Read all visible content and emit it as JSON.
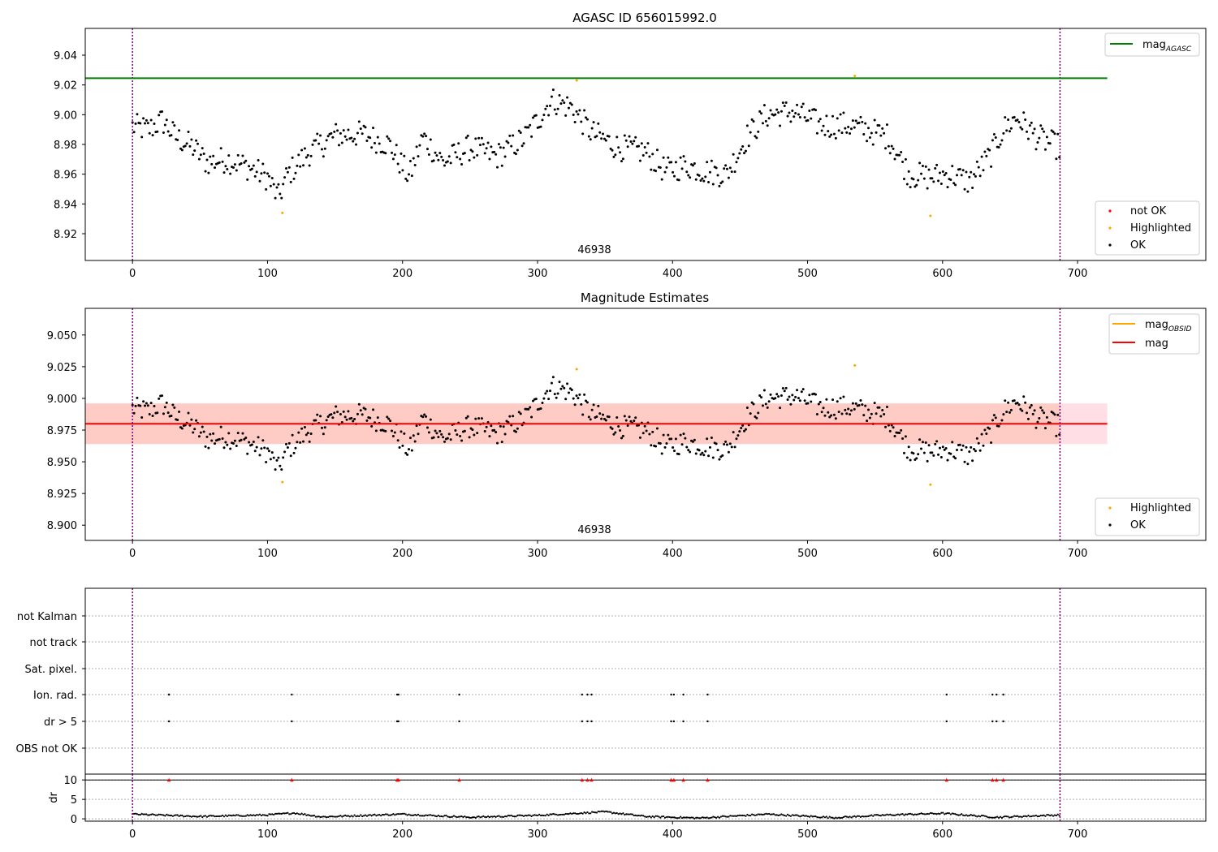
{
  "figure": {
    "title": "AGASC ID 656015992.0",
    "subtitle": "Magnitude Estimates",
    "obsid_label": "46938"
  },
  "colors": {
    "ok": "#000000",
    "not_ok": "#ff0000",
    "highlighted": "#ffa500",
    "mag_agasc": "#008000",
    "mag_obsid": "#ffa500",
    "mag": "#ff0000",
    "band_outer": "#ffc0cb",
    "band_inner": "#ffa07a",
    "obs_boundary": "#800080",
    "grid": "#b0b0b0"
  },
  "chart_data": [
    {
      "type": "scatter",
      "title": "AGASC ID 656015992.0",
      "annotation": "46938",
      "xlim": [
        -35,
        795
      ],
      "ylim": [
        8.902,
        9.058
      ],
      "xticks": [
        0,
        100,
        200,
        300,
        400,
        500,
        600,
        700
      ],
      "yticks": [
        8.92,
        8.94,
        8.96,
        8.98,
        9.0,
        9.02,
        9.04
      ],
      "ytick_labels": [
        "8.92",
        "8.94",
        "8.96",
        "8.98",
        "9.00",
        "9.02",
        "9.04"
      ],
      "grid": false,
      "vlines": [
        0,
        687
      ],
      "hline": {
        "name": "mag",
        "subscript": "AGASC",
        "y": 9.0245,
        "x": [
          -35,
          722
        ]
      },
      "legend_top": {
        "position": "top-right",
        "entries": [
          {
            "label": "mag",
            "subscript": "AGASC"
          }
        ]
      },
      "legend_bottom": {
        "position": "lower-right",
        "entries": [
          "not OK",
          "Highlighted",
          "OK"
        ]
      },
      "highlighted_points": [
        {
          "x": 111,
          "y": 8.934
        },
        {
          "x": 329,
          "y": 9.023
        },
        {
          "x": 535,
          "y": 9.026
        },
        {
          "x": 591,
          "y": 8.932
        }
      ],
      "ok_series_trend": [
        [
          0,
          8.992
        ],
        [
          12,
          8.99
        ],
        [
          22,
          8.996
        ],
        [
          32,
          8.985
        ],
        [
          45,
          8.978
        ],
        [
          55,
          8.968
        ],
        [
          70,
          8.97
        ],
        [
          85,
          8.965
        ],
        [
          100,
          8.958
        ],
        [
          108,
          8.944
        ],
        [
          115,
          8.96
        ],
        [
          130,
          8.974
        ],
        [
          150,
          8.986
        ],
        [
          170,
          8.987
        ],
        [
          190,
          8.98
        ],
        [
          205,
          8.958
        ],
        [
          215,
          8.985
        ],
        [
          230,
          8.968
        ],
        [
          250,
          8.978
        ],
        [
          270,
          8.972
        ],
        [
          290,
          8.984
        ],
        [
          300,
          8.996
        ],
        [
          310,
          9.01
        ],
        [
          325,
          9.005
        ],
        [
          340,
          8.988
        ],
        [
          360,
          8.978
        ],
        [
          380,
          8.975
        ],
        [
          395,
          8.962
        ],
        [
          410,
          8.966
        ],
        [
          425,
          8.962
        ],
        [
          440,
          8.96
        ],
        [
          455,
          8.985
        ],
        [
          470,
          9.0
        ],
        [
          490,
          9.002
        ],
        [
          510,
          8.993
        ],
        [
          530,
          8.993
        ],
        [
          550,
          8.988
        ],
        [
          560,
          8.985
        ],
        [
          575,
          8.96
        ],
        [
          590,
          8.958
        ],
        [
          605,
          8.96
        ],
        [
          620,
          8.955
        ],
        [
          635,
          8.972
        ],
        [
          645,
          8.99
        ],
        [
          655,
          8.998
        ],
        [
          670,
          8.985
        ],
        [
          687,
          8.978
        ]
      ]
    },
    {
      "type": "scatter",
      "title": "Magnitude Estimates",
      "annotation": "46938",
      "xlim": [
        -35,
        795
      ],
      "ylim": [
        8.888,
        9.071
      ],
      "xticks": [
        0,
        100,
        200,
        300,
        400,
        500,
        600,
        700
      ],
      "yticks": [
        8.9,
        8.925,
        8.95,
        8.975,
        9.0,
        9.025,
        9.05
      ],
      "ytick_labels": [
        "8.900",
        "8.925",
        "8.950",
        "8.975",
        "9.000",
        "9.025",
        "9.050"
      ],
      "grid": false,
      "vlines": [
        0,
        687
      ],
      "hline": {
        "name": "mag",
        "y": 8.98,
        "x": [
          -35,
          722
        ]
      },
      "band_outer": {
        "y": [
          8.964,
          8.996
        ],
        "x": [
          -35,
          722
        ]
      },
      "band_inner": {
        "y": [
          8.964,
          8.996
        ],
        "x": [
          -35,
          687
        ]
      },
      "obsid_line": {
        "name": "mag",
        "subscript": "OBSID"
      },
      "legend_top": {
        "position": "top-right",
        "entries": [
          {
            "label": "mag",
            "subscript": "OBSID"
          },
          {
            "label": "mag"
          }
        ]
      },
      "legend_bottom": {
        "position": "lower-right",
        "entries": [
          "Highlighted",
          "OK"
        ]
      },
      "highlighted_points": [
        {
          "x": 111,
          "y": 8.934
        },
        {
          "x": 329,
          "y": 9.023
        },
        {
          "x": 535,
          "y": 9.026
        },
        {
          "x": 591,
          "y": 8.932
        }
      ],
      "ok_series_trend": "same as panel 1"
    },
    {
      "type": "scatter",
      "xlim": [
        -35,
        795
      ],
      "categories": [
        "not Kalman",
        "not track",
        "Sat. pixel.",
        "Ion. rad.",
        "dr > 5",
        "OBS not OK"
      ],
      "grid": true,
      "vlines": [
        0,
        687
      ],
      "flag_events": {
        "Ion. rad.": [
          27,
          118,
          196,
          197,
          242,
          333,
          337,
          340,
          399,
          401,
          408,
          426,
          603,
          637,
          640,
          645
        ],
        "dr > 5": [
          27,
          118,
          196,
          197,
          242,
          333,
          337,
          340,
          399,
          401,
          408,
          426,
          603,
          637,
          640,
          645
        ]
      }
    },
    {
      "type": "line",
      "ylabel": "dr",
      "xlim": [
        -35,
        795
      ],
      "ylim": [
        -0.6,
        11.5
      ],
      "yticks": [
        0,
        5,
        10
      ],
      "xticks": [
        0,
        100,
        200,
        300,
        400,
        500,
        600,
        700
      ],
      "vlines": [
        0,
        687
      ],
      "hline": 10,
      "markers_at_10": [
        27,
        118,
        196,
        197,
        242,
        333,
        337,
        340,
        399,
        401,
        408,
        426,
        603,
        637,
        640,
        645
      ],
      "series_trend": [
        [
          0,
          1.2
        ],
        [
          50,
          0.6
        ],
        [
          100,
          1.0
        ],
        [
          120,
          1.5
        ],
        [
          140,
          0.5
        ],
        [
          200,
          1.2
        ],
        [
          250,
          0.4
        ],
        [
          300,
          0.9
        ],
        [
          350,
          1.8
        ],
        [
          380,
          0.6
        ],
        [
          420,
          0.2
        ],
        [
          470,
          1.2
        ],
        [
          520,
          0.3
        ],
        [
          560,
          1.0
        ],
        [
          600,
          1.4
        ],
        [
          640,
          0.4
        ],
        [
          687,
          1.0
        ]
      ]
    }
  ]
}
